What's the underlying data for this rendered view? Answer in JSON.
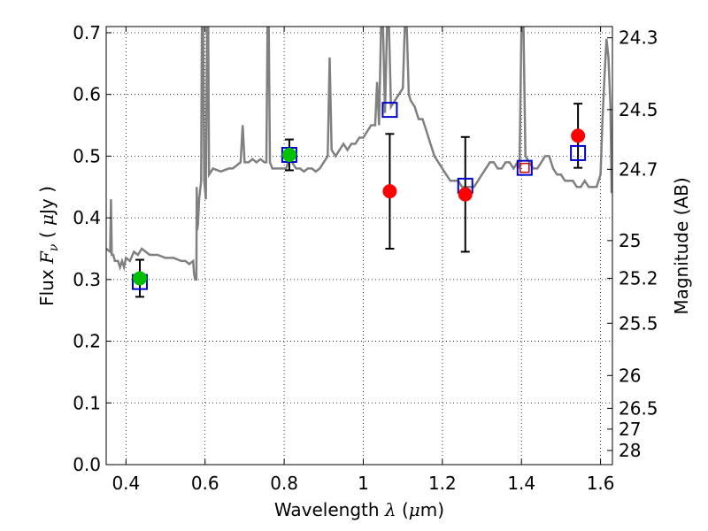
{
  "chart_data": {
    "type": "scatter",
    "title": "",
    "xlabel_text": "Wavelength",
    "xlabel_symbol": "λ",
    "xlabel_unit_open": "(",
    "xlabel_unit_mu": "μ",
    "xlabel_unit_rest": "m)",
    "ylabel_text": "Flux",
    "ylabel_symbol": "F",
    "ylabel_subscript": "ν",
    "ylabel_unit_open": "(",
    "ylabel_unit_mu": "μ",
    "ylabel_unit_rest": "Jy )",
    "y2label": "Magnitude (AB)",
    "xlim": [
      0.35,
      1.63
    ],
    "ylim": [
      0.0,
      0.71
    ],
    "grid": true,
    "x_ticks": [
      {
        "value": 0.4,
        "label": "0.4"
      },
      {
        "value": 0.6,
        "label": "0.6"
      },
      {
        "value": 0.8,
        "label": "0.8"
      },
      {
        "value": 1.0,
        "label": "1"
      },
      {
        "value": 1.2,
        "label": "1.2"
      },
      {
        "value": 1.4,
        "label": "1.4"
      },
      {
        "value": 1.6,
        "label": "1.6"
      }
    ],
    "y_ticks": [
      {
        "value": 0.0,
        "label": "0.0"
      },
      {
        "value": 0.1,
        "label": "0.1"
      },
      {
        "value": 0.2,
        "label": "0.2"
      },
      {
        "value": 0.3,
        "label": "0.3"
      },
      {
        "value": 0.4,
        "label": "0.4"
      },
      {
        "value": 0.5,
        "label": "0.5"
      },
      {
        "value": 0.6,
        "label": "0.6"
      },
      {
        "value": 0.7,
        "label": "0.7"
      }
    ],
    "mag_ticks": [
      {
        "flux": 0.6918,
        "label": "24.3"
      },
      {
        "flux": 0.5754,
        "label": "24.5"
      },
      {
        "flux": 0.4786,
        "label": "24.7"
      },
      {
        "flux": 0.3631,
        "label": "25"
      },
      {
        "flux": 0.302,
        "label": "25.2"
      },
      {
        "flux": 0.2291,
        "label": "25.5"
      },
      {
        "flux": 0.1445,
        "label": "26"
      },
      {
        "flux": 0.0912,
        "label": "26.5"
      },
      {
        "flux": 0.0575,
        "label": "27"
      },
      {
        "flux": 0.0229,
        "label": "28"
      }
    ],
    "colors": {
      "spectrum": "#808080",
      "measured": "#ff0000",
      "measured_green": "#00c000",
      "model_box": "#0000cc",
      "model_box_highlight": "#cc0000",
      "errorbar": "#000000"
    },
    "spectrum": [
      [
        0.35,
        0.35
      ],
      [
        0.36,
        0.345
      ],
      [
        0.362,
        0.43
      ],
      [
        0.364,
        0.34
      ],
      [
        0.368,
        0.34
      ],
      [
        0.372,
        0.33
      ],
      [
        0.38,
        0.33
      ],
      [
        0.385,
        0.32
      ],
      [
        0.39,
        0.33
      ],
      [
        0.395,
        0.32
      ],
      [
        0.4,
        0.335
      ],
      [
        0.41,
        0.33
      ],
      [
        0.42,
        0.345
      ],
      [
        0.43,
        0.34
      ],
      [
        0.44,
        0.35
      ],
      [
        0.45,
        0.345
      ],
      [
        0.46,
        0.34
      ],
      [
        0.48,
        0.34
      ],
      [
        0.5,
        0.335
      ],
      [
        0.52,
        0.335
      ],
      [
        0.54,
        0.33
      ],
      [
        0.55,
        0.33
      ],
      [
        0.56,
        0.325
      ],
      [
        0.57,
        0.33
      ],
      [
        0.572,
        0.31
      ],
      [
        0.575,
        0.3
      ],
      [
        0.578,
        0.3
      ],
      [
        0.579,
        0.45
      ],
      [
        0.58,
        0.38
      ],
      [
        0.582,
        0.39
      ],
      [
        0.585,
        0.43
      ],
      [
        0.59,
        0.46
      ],
      [
        0.592,
        0.71
      ],
      [
        0.595,
        0.71
      ],
      [
        0.598,
        0.46
      ],
      [
        0.602,
        0.43
      ],
      [
        0.605,
        0.71
      ],
      [
        0.608,
        0.71
      ],
      [
        0.61,
        0.47
      ],
      [
        0.62,
        0.48
      ],
      [
        0.64,
        0.475
      ],
      [
        0.66,
        0.48
      ],
      [
        0.67,
        0.48
      ],
      [
        0.68,
        0.485
      ],
      [
        0.69,
        0.49
      ],
      [
        0.695,
        0.55
      ],
      [
        0.7,
        0.49
      ],
      [
        0.71,
        0.49
      ],
      [
        0.72,
        0.495
      ],
      [
        0.73,
        0.49
      ],
      [
        0.74,
        0.495
      ],
      [
        0.75,
        0.49
      ],
      [
        0.755,
        0.49
      ],
      [
        0.758,
        0.71
      ],
      [
        0.761,
        0.71
      ],
      [
        0.764,
        0.49
      ],
      [
        0.77,
        0.48
      ],
      [
        0.78,
        0.48
      ],
      [
        0.79,
        0.48
      ],
      [
        0.795,
        0.48
      ],
      [
        0.8,
        0.48
      ],
      [
        0.805,
        0.48
      ],
      [
        0.81,
        0.49
      ],
      [
        0.815,
        0.5
      ],
      [
        0.82,
        0.49
      ],
      [
        0.83,
        0.48
      ],
      [
        0.84,
        0.48
      ],
      [
        0.85,
        0.475
      ],
      [
        0.86,
        0.48
      ],
      [
        0.87,
        0.48
      ],
      [
        0.88,
        0.475
      ],
      [
        0.89,
        0.48
      ],
      [
        0.9,
        0.49
      ],
      [
        0.91,
        0.5
      ],
      [
        0.915,
        0.66
      ],
      [
        0.92,
        0.51
      ],
      [
        0.93,
        0.5
      ],
      [
        0.94,
        0.51
      ],
      [
        0.95,
        0.52
      ],
      [
        0.96,
        0.51
      ],
      [
        0.97,
        0.52
      ],
      [
        0.98,
        0.52
      ],
      [
        0.99,
        0.53
      ],
      [
        1.0,
        0.53
      ],
      [
        1.01,
        0.54
      ],
      [
        1.02,
        0.55
      ],
      [
        1.03,
        0.55
      ],
      [
        1.035,
        0.62
      ],
      [
        1.04,
        0.55
      ],
      [
        1.045,
        0.71
      ],
      [
        1.05,
        0.71
      ],
      [
        1.055,
        0.57
      ],
      [
        1.06,
        0.71
      ],
      [
        1.065,
        0.71
      ],
      [
        1.07,
        0.58
      ],
      [
        1.08,
        0.59
      ],
      [
        1.09,
        0.6
      ],
      [
        1.1,
        0.61
      ],
      [
        1.105,
        0.71
      ],
      [
        1.11,
        0.71
      ],
      [
        1.115,
        0.6
      ],
      [
        1.12,
        0.59
      ],
      [
        1.13,
        0.58
      ],
      [
        1.14,
        0.56
      ],
      [
        1.15,
        0.56
      ],
      [
        1.16,
        0.54
      ],
      [
        1.17,
        0.52
      ],
      [
        1.18,
        0.5
      ],
      [
        1.19,
        0.49
      ],
      [
        1.2,
        0.48
      ],
      [
        1.21,
        0.47
      ],
      [
        1.22,
        0.46
      ],
      [
        1.23,
        0.46
      ],
      [
        1.24,
        0.46
      ],
      [
        1.25,
        0.45
      ],
      [
        1.26,
        0.45
      ],
      [
        1.27,
        0.45
      ],
      [
        1.28,
        0.45
      ],
      [
        1.29,
        0.46
      ],
      [
        1.3,
        0.47
      ],
      [
        1.31,
        0.48
      ],
      [
        1.32,
        0.49
      ],
      [
        1.33,
        0.49
      ],
      [
        1.34,
        0.48
      ],
      [
        1.35,
        0.48
      ],
      [
        1.36,
        0.49
      ],
      [
        1.37,
        0.49
      ],
      [
        1.38,
        0.48
      ],
      [
        1.39,
        0.49
      ],
      [
        1.395,
        0.48
      ],
      [
        1.4,
        0.71
      ],
      [
        1.405,
        0.71
      ],
      [
        1.41,
        0.5
      ],
      [
        1.42,
        0.49
      ],
      [
        1.43,
        0.48
      ],
      [
        1.44,
        0.48
      ],
      [
        1.45,
        0.49
      ],
      [
        1.46,
        0.5
      ],
      [
        1.47,
        0.5
      ],
      [
        1.48,
        0.48
      ],
      [
        1.49,
        0.47
      ],
      [
        1.5,
        0.47
      ],
      [
        1.51,
        0.46
      ],
      [
        1.52,
        0.46
      ],
      [
        1.53,
        0.46
      ],
      [
        1.54,
        0.45
      ],
      [
        1.55,
        0.45
      ],
      [
        1.56,
        0.46
      ],
      [
        1.57,
        0.45
      ],
      [
        1.58,
        0.45
      ],
      [
        1.59,
        0.45
      ],
      [
        1.6,
        0.47
      ],
      [
        1.605,
        0.56
      ],
      [
        1.61,
        0.63
      ],
      [
        1.615,
        0.69
      ],
      [
        1.62,
        0.66
      ],
      [
        1.625,
        0.58
      ],
      [
        1.628,
        0.44
      ]
    ],
    "measured": [
      {
        "x": 0.435,
        "y": 0.302,
        "err": 0.03,
        "color": "green"
      },
      {
        "x": 0.813,
        "y": 0.502,
        "err": 0.025,
        "color": "green"
      },
      {
        "x": 1.067,
        "y": 0.443,
        "err": 0.093,
        "color": "red"
      },
      {
        "x": 1.258,
        "y": 0.438,
        "err": 0.093,
        "color": "red"
      },
      {
        "x": 1.543,
        "y": 0.533,
        "err": 0.052,
        "color": "red"
      }
    ],
    "model_boxes": [
      {
        "x": 0.435,
        "y": 0.296,
        "highlight": false
      },
      {
        "x": 0.813,
        "y": 0.502,
        "highlight": false
      },
      {
        "x": 1.067,
        "y": 0.575,
        "highlight": false
      },
      {
        "x": 1.258,
        "y": 0.452,
        "highlight": false
      },
      {
        "x": 1.408,
        "y": 0.481,
        "highlight": true
      },
      {
        "x": 1.543,
        "y": 0.505,
        "highlight": false
      }
    ]
  }
}
